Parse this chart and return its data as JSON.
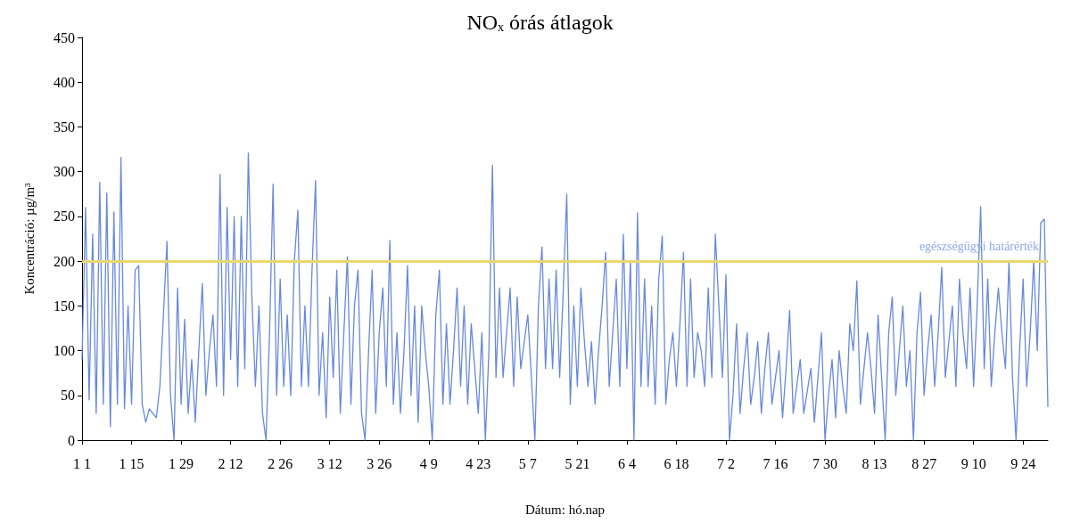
{
  "chart_data": {
    "type": "line",
    "title": "NOₓ órás átlagok",
    "xlabel": "Dátum: hó.nap",
    "ylabel": "Koncentráció: µg/m³",
    "categories": [
      "1 1",
      null,
      null,
      null,
      null,
      null,
      null,
      null,
      null,
      null,
      null,
      null,
      null,
      null,
      "1 15",
      null,
      null,
      null,
      null,
      null,
      null,
      null,
      null,
      null,
      null,
      null,
      null,
      null,
      "1 29",
      null,
      null,
      null,
      null,
      null,
      null,
      null,
      null,
      null,
      null,
      null,
      null,
      null,
      "2 12",
      null,
      null,
      null,
      null,
      null,
      null,
      null,
      null,
      null,
      null,
      null,
      null,
      null,
      "2 26",
      null,
      null,
      null,
      null,
      null,
      null,
      null,
      null,
      null,
      null,
      null,
      null,
      null,
      "3 12",
      null,
      null,
      null,
      null,
      null,
      null,
      null,
      null,
      null,
      null,
      null,
      null,
      null,
      "3 26",
      null,
      null,
      null,
      null,
      null,
      null,
      null,
      null,
      null,
      null,
      null,
      null,
      null,
      "4 9",
      null,
      null,
      null,
      null,
      null,
      null,
      null,
      null,
      null,
      null,
      null,
      null,
      null,
      "4 23",
      null,
      null,
      null,
      null,
      null,
      null,
      null,
      null,
      null,
      null,
      null,
      null,
      null,
      "5 7",
      null,
      null,
      null,
      null,
      null,
      null,
      null,
      null,
      null,
      null,
      null,
      null,
      null,
      "5 21",
      null,
      null,
      null,
      null,
      null,
      null,
      null,
      null,
      null,
      null,
      null,
      null,
      null,
      "6 4",
      null,
      null,
      null,
      null,
      null,
      null,
      null,
      null,
      null,
      null,
      null,
      null,
      null,
      "6 18",
      null,
      null,
      null,
      null,
      null,
      null,
      null,
      null,
      null,
      null,
      null,
      null,
      null,
      "7 2",
      null,
      null,
      null,
      null,
      null,
      null,
      null,
      null,
      null,
      null,
      null,
      null,
      null,
      "7 16",
      null,
      null,
      null,
      null,
      null,
      null,
      null,
      null,
      null,
      null,
      null,
      null,
      null,
      "7 30",
      null,
      null,
      null,
      null,
      null,
      null,
      null,
      null,
      null,
      null,
      null,
      null,
      null,
      "8 13",
      null,
      null,
      null,
      null,
      null,
      null,
      null,
      null,
      null,
      null,
      null,
      null,
      null,
      "8 27",
      null,
      null,
      null,
      null,
      null,
      null,
      null,
      null,
      null,
      null,
      null,
      null,
      null,
      "9 10",
      null,
      null,
      null,
      null,
      null,
      null,
      null,
      null,
      null,
      null,
      null,
      null,
      null,
      "9 24",
      null,
      null,
      null,
      null,
      null,
      null,
      null
    ],
    "ylim": [
      0,
      450
    ],
    "yticks": [
      0,
      50,
      100,
      150,
      200,
      250,
      300,
      350,
      400,
      450
    ],
    "grid": false,
    "marker": "none",
    "line_style": "solid",
    "ref_lines": [
      {
        "axis": "y",
        "value": 200,
        "label": "egészségügyi határérték",
        "color": "#e8d870"
      }
    ],
    "series": [
      {
        "color": "#6688dd",
        "values": [
          90,
          260,
          45,
          230,
          30,
          288,
          40,
          276,
          15,
          255,
          40,
          316,
          35,
          150,
          40,
          190,
          195,
          40,
          20,
          35,
          30,
          25,
          60,
          140,
          222,
          50,
          0,
          170,
          40,
          135,
          30,
          90,
          20,
          100,
          175,
          50,
          100,
          140,
          60,
          297,
          50,
          260,
          90,
          250,
          60,
          250,
          80,
          321,
          160,
          60,
          150,
          30,
          0,
          120,
          286,
          50,
          180,
          60,
          140,
          50,
          200,
          257,
          60,
          150,
          60,
          190,
          290,
          50,
          120,
          25,
          160,
          70,
          190,
          30,
          120,
          205,
          40,
          150,
          190,
          30,
          0,
          100,
          190,
          30,
          120,
          170,
          60,
          223,
          40,
          120,
          30,
          100,
          195,
          50,
          150,
          20,
          150,
          100,
          60,
          0,
          140,
          190,
          40,
          130,
          40,
          100,
          170,
          60,
          150,
          40,
          130,
          80,
          30,
          120,
          0,
          100,
          307,
          70,
          170,
          70,
          120,
          170,
          60,
          160,
          80,
          110,
          140,
          70,
          0,
          150,
          216,
          80,
          180,
          80,
          190,
          70,
          165,
          275,
          40,
          150,
          60,
          170,
          110,
          60,
          110,
          40,
          100,
          150,
          210,
          60,
          120,
          180,
          60,
          230,
          80,
          200,
          0,
          254,
          60,
          180,
          60,
          150,
          40,
          180,
          228,
          40,
          90,
          120,
          60,
          130,
          210,
          60,
          180,
          70,
          120,
          100,
          60,
          170,
          70,
          230,
          150,
          70,
          185,
          0,
          50,
          130,
          30,
          80,
          120,
          40,
          70,
          110,
          30,
          80,
          120,
          40,
          70,
          100,
          25,
          80,
          145,
          30,
          60,
          90,
          30,
          55,
          80,
          20,
          70,
          120,
          0,
          50,
          90,
          25,
          100,
          60,
          30,
          130,
          100,
          178,
          40,
          80,
          120,
          80,
          30,
          140,
          70,
          0,
          120,
          160,
          50,
          100,
          150,
          60,
          100,
          0,
          120,
          165,
          50,
          100,
          140,
          60,
          120,
          193,
          70,
          110,
          150,
          60,
          180,
          120,
          80,
          170,
          60,
          150,
          261,
          80,
          180,
          60,
          120,
          170,
          120,
          80,
          200,
          70,
          0,
          100,
          180,
          60,
          120,
          200,
          100,
          243,
          247,
          37
        ]
      }
    ]
  }
}
